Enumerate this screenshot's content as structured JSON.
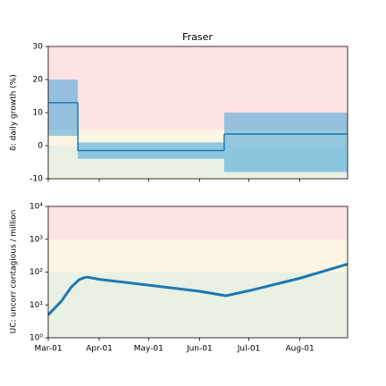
{
  "chart_data": [
    {
      "type": "step",
      "title": "Fraser",
      "ylabel": "δ: daily growth (%)",
      "x": [
        0,
        18,
        107
      ],
      "values": [
        13,
        -1.5,
        3.5
      ],
      "band_low": [
        3,
        -4,
        -8
      ],
      "band_high": [
        20,
        1,
        10
      ],
      "color": "#1f77b4",
      "band_color": "#3fa3d8",
      "regions": [
        {
          "range": [
            5,
            30
          ],
          "color": "#fde3e3"
        },
        {
          "range": [
            0,
            5
          ],
          "color": "#fdf5e3"
        },
        {
          "range": [
            -10,
            0
          ],
          "color": "#e8f1e4"
        }
      ],
      "xlim": [
        0,
        182
      ],
      "ylim": [
        -10,
        30
      ],
      "yticks": [
        -10,
        0,
        10,
        20,
        30
      ],
      "xticks": [
        0,
        31,
        61,
        92,
        122,
        153
      ]
    },
    {
      "type": "line",
      "ylabel": "UC: uncorr contagious / million",
      "log_y": true,
      "x": [
        0,
        8,
        14,
        19,
        22,
        24,
        31,
        61,
        92,
        108,
        122,
        153,
        182
      ],
      "values": [
        5,
        13,
        35,
        60,
        68,
        70,
        60,
        40,
        26,
        19,
        27,
        65,
        175
      ],
      "color": "#1f77b4",
      "regions": [
        {
          "range": [
            1000,
            10000
          ],
          "color": "#fde3e3"
        },
        {
          "range": [
            100,
            1000
          ],
          "color": "#fdf5e3"
        },
        {
          "range": [
            1,
            100
          ],
          "color": "#e8f1e4"
        }
      ],
      "xlim": [
        0,
        182
      ],
      "ylim": [
        1,
        10000
      ],
      "yticks": [
        {
          "value": 1,
          "label": "10⁰"
        },
        {
          "value": 10,
          "label": "10¹"
        },
        {
          "value": 100,
          "label": "10²"
        },
        {
          "value": 1000,
          "label": "10³"
        },
        {
          "value": 10000,
          "label": "10⁴"
        }
      ],
      "xticks": [
        {
          "value": 0,
          "label": "Mar-01"
        },
        {
          "value": 31,
          "label": "Apr-01"
        },
        {
          "value": 61,
          "label": "May-01"
        },
        {
          "value": 92,
          "label": "Jun-01"
        },
        {
          "value": 122,
          "label": "Jul-01"
        },
        {
          "value": 153,
          "label": "Aug-01"
        }
      ]
    }
  ]
}
